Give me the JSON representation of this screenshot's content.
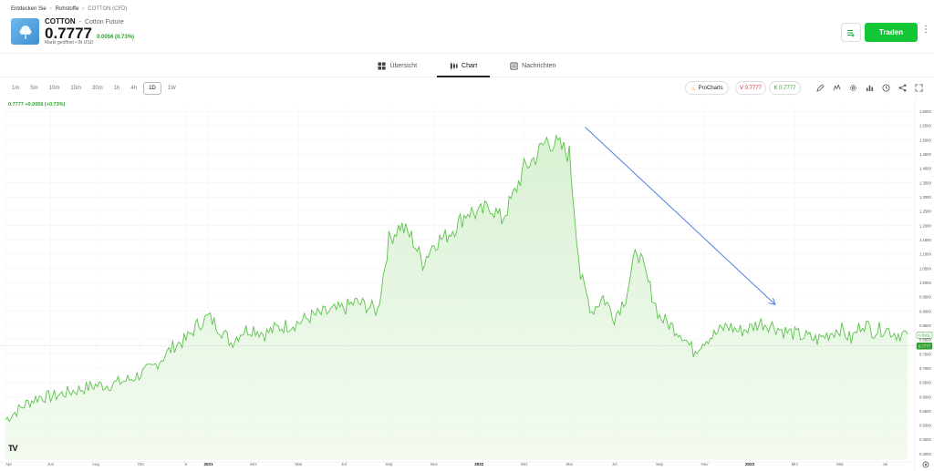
{
  "breadcrumb": [
    {
      "label": "Entdecken Sie"
    },
    {
      "label": "Rohstoffe"
    },
    {
      "label": "COTTON (CFD)"
    }
  ],
  "instrument": {
    "symbol": "COTTON",
    "separator": "-",
    "name": "Cotton Future",
    "price": "0.7777",
    "change": "0.0056 (0.73%)",
    "status": "Markt geöffnet",
    "currency_sep": "•",
    "currency": "IN USD"
  },
  "actions": {
    "trade_label": "Traden",
    "list_icon": "list-add-icon",
    "menu_icon": "kebab-menu-icon"
  },
  "tabs": [
    {
      "label": "Übersicht",
      "icon": "overview-icon",
      "active": false
    },
    {
      "label": "Chart",
      "icon": "candles-icon",
      "active": true
    },
    {
      "label": "Nachrichten",
      "icon": "news-icon",
      "active": false
    }
  ],
  "timeframes": [
    {
      "label": "1m",
      "active": false
    },
    {
      "label": "5m",
      "active": false
    },
    {
      "label": "10m",
      "active": false
    },
    {
      "label": "15m",
      "active": false
    },
    {
      "label": "30m",
      "active": false
    },
    {
      "label": "1h",
      "active": false
    },
    {
      "label": "4h",
      "active": false
    },
    {
      "label": "1D",
      "active": true
    },
    {
      "label": "1W",
      "active": false
    }
  ],
  "chart_buttons": {
    "procharts": "ProCharts",
    "sell": "V 0.7777",
    "buy": "K 0.7777"
  },
  "tools": [
    "draw-icon",
    "indicators-icon",
    "settings-icon",
    "chart-type-icon",
    "clock-icon",
    "share-icon",
    "fullscreen-icon"
  ],
  "colors": {
    "accent": "#13c636",
    "line": "#5cc24c",
    "fill": "#e3f5de",
    "arrow": "#4f7fe0",
    "sell": "#d9232f",
    "buy": "#2ea12f"
  },
  "chart_data": {
    "type": "area",
    "header_label": "0.7777 +0.0056 (+0.73%)",
    "tv_logo": "TV",
    "ylim": [
      0.35,
      1.6
    ],
    "y_ticks": [
      "1.6000",
      "1.5500",
      "1.5000",
      "1.4500",
      "1.4000",
      "1.3500",
      "1.3000",
      "1.2500",
      "1.2000",
      "1.1500",
      "1.1000",
      "1.0500",
      "1.0000",
      "0.9500",
      "0.9000",
      "0.8500",
      "0.8000",
      "0.7500",
      "0.7000",
      "0.6500",
      "0.6000",
      "0.5500",
      "0.5000",
      "0.4500",
      "0.4000"
    ],
    "y_tick_values": [
      1.6,
      1.55,
      1.5,
      1.45,
      1.4,
      1.35,
      1.3,
      1.25,
      1.2,
      1.15,
      1.1,
      1.05,
      1.0,
      0.95,
      0.9,
      0.85,
      0.8,
      0.75,
      0.7,
      0.65,
      0.6,
      0.55,
      0.5,
      0.45,
      0.4
    ],
    "x_ticks": [
      "Apr",
      "Jun",
      "Aug",
      "Okt",
      "6",
      "2021",
      "Mrz",
      "Mai",
      "Jul",
      "Sep",
      "Nov",
      "2022",
      "Mrz",
      "Mai",
      "Jul",
      "Sep",
      "Nov",
      "2023",
      "Mrz",
      "Mai",
      "Jul"
    ],
    "x_tick_months": [
      0,
      2,
      4,
      6,
      8,
      9,
      11,
      13,
      15,
      17,
      19,
      21,
      23,
      25,
      27,
      29,
      31,
      33,
      35,
      37,
      39
    ],
    "bold_ticks": [
      "2021",
      "2022",
      "2023"
    ],
    "price_tags": [
      {
        "label": "0.8161",
        "value": 0.8161,
        "style": "outline"
      },
      {
        "label": "0.7777",
        "value": 0.7777,
        "style": "filled"
      }
    ],
    "x_months": [
      0,
      0.5,
      1,
      1.5,
      2,
      2.5,
      3,
      3.5,
      4,
      4.5,
      5,
      5.5,
      6,
      6.5,
      7,
      7.5,
      8,
      8.5,
      9,
      9.5,
      10,
      10.5,
      11,
      11.5,
      12,
      12.5,
      13,
      13.5,
      14,
      14.5,
      15,
      15.5,
      16,
      16.5,
      17,
      17.5,
      18,
      18.5,
      19,
      19.5,
      20,
      20.5,
      21,
      21.5,
      22,
      22.5,
      23,
      23.5,
      24,
      24.5,
      25,
      25.5,
      26,
      26.5,
      27,
      27.5,
      28,
      28.5,
      29,
      29.5,
      30,
      30.5,
      31,
      31.5,
      32,
      32.5,
      33,
      33.5,
      34,
      34.5,
      35,
      35.5,
      36,
      36.5,
      37,
      37.5,
      38,
      38.5,
      39,
      39.5,
      40
    ],
    "values": [
      0.52,
      0.55,
      0.58,
      0.6,
      0.6,
      0.61,
      0.62,
      0.63,
      0.64,
      0.64,
      0.65,
      0.66,
      0.68,
      0.7,
      0.74,
      0.78,
      0.8,
      0.85,
      0.88,
      0.84,
      0.79,
      0.83,
      0.84,
      0.82,
      0.84,
      0.85,
      0.86,
      0.88,
      0.89,
      0.9,
      0.91,
      0.93,
      0.92,
      0.9,
      1.15,
      1.2,
      1.16,
      1.07,
      1.14,
      1.16,
      1.2,
      1.25,
      1.24,
      1.27,
      1.22,
      1.3,
      1.4,
      1.44,
      1.5,
      1.48,
      1.45,
      1.02,
      0.9,
      0.95,
      0.88,
      0.95,
      1.12,
      1.0,
      0.88,
      0.85,
      0.82,
      0.76,
      0.8,
      0.82,
      0.85,
      0.83,
      0.84,
      0.86,
      0.85,
      0.83,
      0.82,
      0.81,
      0.8,
      0.82,
      0.84,
      0.8,
      0.86,
      0.83,
      0.84,
      0.82,
      0.82
    ],
    "trend_arrow": {
      "from": {
        "month": 25.7,
        "value": 1.545
      },
      "to": {
        "month": 34.1,
        "value": 0.925
      }
    }
  }
}
